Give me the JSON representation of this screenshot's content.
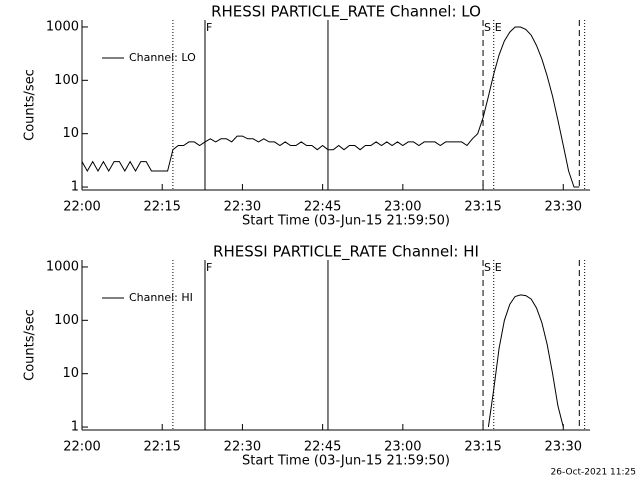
{
  "chart_data": [
    {
      "type": "line",
      "title": "RHESSI PARTICLE_RATE Channel: LO",
      "y_label": "Counts/sec",
      "x_label": "Start Time (03-Jun-15 21:59:50)",
      "log_y": true,
      "legend": "upper left",
      "xlim": [
        "22:00",
        "23:35"
      ],
      "xticks": [
        "22:00",
        "22:15",
        "22:30",
        "22:45",
        "23:00",
        "23:15",
        "23:30"
      ],
      "ylim": [
        0.88,
        1350
      ],
      "yticks": [
        1,
        10,
        100,
        1000
      ],
      "markers": [
        {
          "x": "22:17",
          "style": "dotted"
        },
        {
          "x": "22:23",
          "style": "solid",
          "label": "F"
        },
        {
          "x": "22:46",
          "style": "solid"
        },
        {
          "x": "23:15",
          "style": "dashed",
          "label": "S"
        },
        {
          "x": "23:17",
          "style": "dotted",
          "label": "E"
        },
        {
          "x": "23:33",
          "style": "dashed"
        },
        {
          "x": "23:34",
          "style": "dotted"
        }
      ],
      "x": [
        "22:00",
        "22:01",
        "22:02",
        "22:03",
        "22:04",
        "22:05",
        "22:06",
        "22:07",
        "22:08",
        "22:09",
        "22:10",
        "22:11",
        "22:12",
        "22:13",
        "22:14",
        "22:15",
        "22:16",
        "22:17",
        "22:18",
        "22:19",
        "22:20",
        "22:21",
        "22:22",
        "22:23",
        "22:24",
        "22:25",
        "22:26",
        "22:27",
        "22:28",
        "22:29",
        "22:30",
        "22:31",
        "22:32",
        "22:33",
        "22:34",
        "22:35",
        "22:36",
        "22:37",
        "22:38",
        "22:39",
        "22:40",
        "22:41",
        "22:42",
        "22:43",
        "22:44",
        "22:45",
        "22:46",
        "22:47",
        "22:48",
        "22:49",
        "22:50",
        "22:51",
        "22:52",
        "22:53",
        "22:54",
        "22:55",
        "22:56",
        "22:57",
        "22:58",
        "22:59",
        "23:00",
        "23:01",
        "23:02",
        "23:03",
        "23:04",
        "23:05",
        "23:06",
        "23:07",
        "23:08",
        "23:09",
        "23:10",
        "23:11",
        "23:12",
        "23:13",
        "23:14",
        "23:15",
        "23:16",
        "23:17",
        "23:18",
        "23:19",
        "23:20",
        "23:21",
        "23:22",
        "23:23",
        "23:24",
        "23:25",
        "23:26",
        "23:27",
        "23:28",
        "23:29",
        "23:30",
        "23:31",
        "23:32",
        "23:33"
      ],
      "series": [
        {
          "name": "Channel: LO",
          "color": "#000000",
          "values": [
            3,
            2,
            3,
            2,
            3,
            2,
            3,
            3,
            2,
            3,
            2,
            3,
            3,
            2,
            2,
            2,
            2,
            5,
            6,
            6,
            7,
            7,
            6,
            7,
            8,
            7,
            8,
            8,
            7,
            9,
            9,
            8,
            8,
            7,
            8,
            7,
            7,
            6,
            7,
            6,
            6,
            7,
            6,
            6,
            5,
            6,
            5,
            5,
            6,
            5,
            6,
            6,
            5,
            6,
            6,
            7,
            6,
            7,
            6,
            7,
            6,
            7,
            7,
            6,
            7,
            7,
            7,
            6,
            7,
            7,
            7,
            7,
            6,
            8,
            10,
            20,
            50,
            130,
            300,
            550,
            800,
            1000,
            1000,
            900,
            700,
            450,
            250,
            120,
            50,
            18,
            6,
            2,
            1,
            1
          ]
        }
      ]
    },
    {
      "type": "line",
      "title": "RHESSI PARTICLE_RATE Channel: HI",
      "y_label": "Counts/sec",
      "x_label": "Start Time (03-Jun-15 21:59:50)",
      "log_y": true,
      "legend": "upper left",
      "xlim": [
        "22:00",
        "23:35"
      ],
      "xticks": [
        "22:00",
        "22:15",
        "22:30",
        "22:45",
        "23:00",
        "23:15",
        "23:30"
      ],
      "ylim": [
        0.88,
        1350
      ],
      "yticks": [
        1,
        10,
        100,
        1000
      ],
      "markers": [
        {
          "x": "22:17",
          "style": "dotted"
        },
        {
          "x": "22:23",
          "style": "solid",
          "label": "F"
        },
        {
          "x": "22:46",
          "style": "solid"
        },
        {
          "x": "23:15",
          "style": "dashed",
          "label": "S"
        },
        {
          "x": "23:17",
          "style": "dotted",
          "label": "E"
        },
        {
          "x": "23:33",
          "style": "dashed"
        },
        {
          "x": "23:34",
          "style": "dotted"
        }
      ],
      "x": [
        "23:16",
        "23:17",
        "23:18",
        "23:19",
        "23:20",
        "23:21",
        "23:22",
        "23:23",
        "23:24",
        "23:25",
        "23:26",
        "23:27",
        "23:28",
        "23:29",
        "23:30"
      ],
      "series": [
        {
          "name": "Channel: HI",
          "color": "#000000",
          "values": [
            1,
            5,
            30,
            100,
            200,
            280,
            300,
            290,
            250,
            170,
            90,
            35,
            10,
            2.5,
            1
          ]
        }
      ]
    }
  ],
  "footer": "26-Oct-2021 11:25"
}
